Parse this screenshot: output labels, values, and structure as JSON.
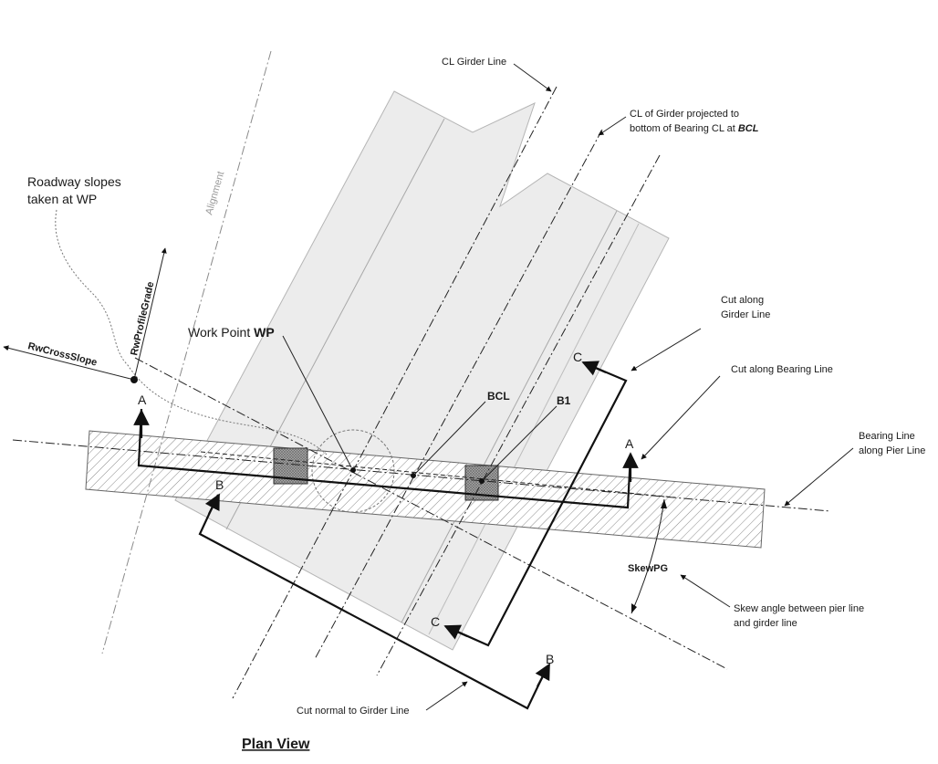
{
  "title": "Plan View",
  "labels": {
    "cl_girder_line": "CL Girder Line",
    "cl_projected_1": "CL of Girder projected to",
    "cl_projected_2": "bottom of Bearing CL  at ",
    "cl_projected_bcl": "BCL",
    "roadway_1": "Roadway slopes",
    "roadway_2": "taken at WP",
    "alignment": "Alignment",
    "rw_profile_grade": "RwProfileGrade",
    "rw_cross_slope": "RwCrossSlope",
    "work_point": "Work Point ",
    "work_point_wp": "WP",
    "bcl": "BCL",
    "b1": "B1",
    "cut_girder_1": "Cut along",
    "cut_girder_2": "Girder Line",
    "cut_bearing": "Cut along Bearing Line",
    "bearing_line_1": "Bearing Line",
    "bearing_line_2": "along Pier Line",
    "skew_pg": "SkewPG",
    "skew_desc_1": "Skew angle between pier line",
    "skew_desc_2": "and girder line",
    "cut_normal": "Cut normal to Girder Line",
    "sec_a": "A",
    "sec_b": "B",
    "sec_c": "C"
  },
  "colors": {
    "girder_fill": "#ececec",
    "girder_edge": "#b0b0b0",
    "pier_hatch": "#7a7a7a",
    "bearing_fill": "#9a9a9a",
    "line": "#222222"
  }
}
